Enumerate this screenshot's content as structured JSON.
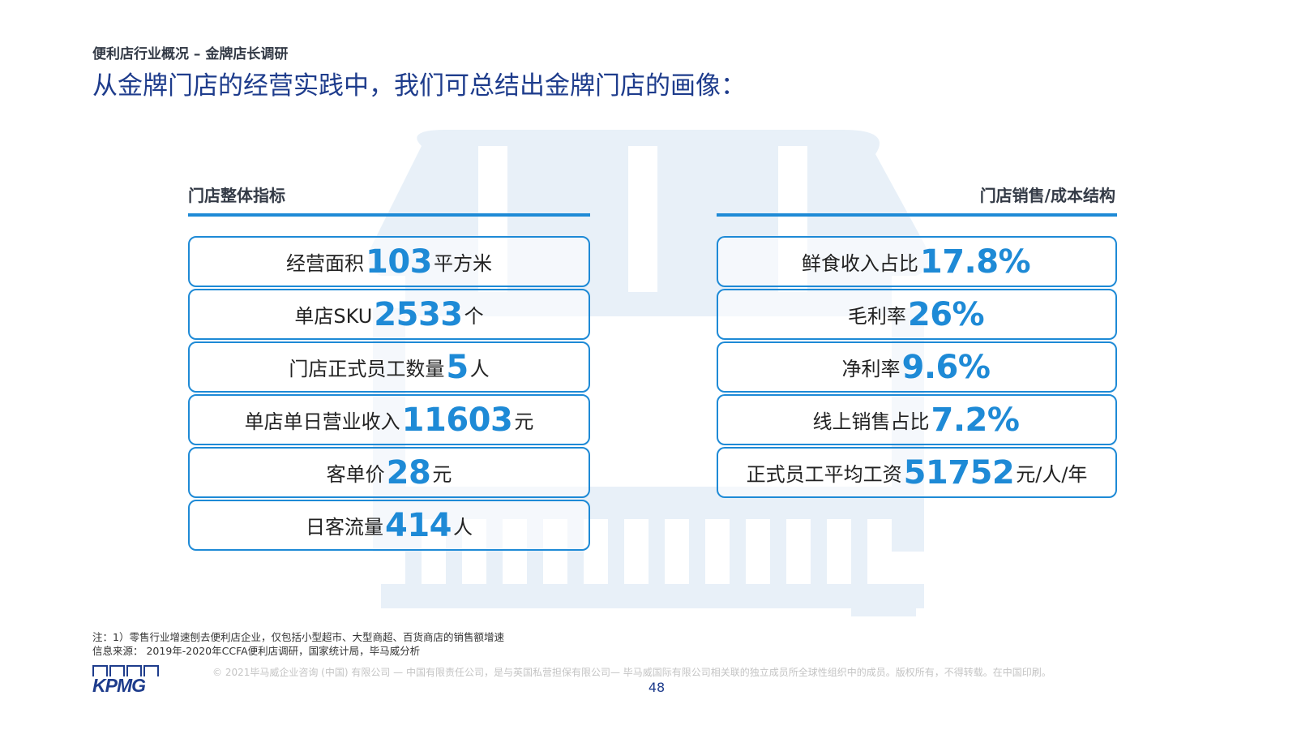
{
  "header": {
    "subtitle": "便利店行业概况 – 金牌店长调研",
    "title": "从金牌门店的经营实践中，我们可总结出金牌门店的画像："
  },
  "left_section": {
    "heading": "门店整体指标",
    "items": [
      {
        "label": "经营面积",
        "value": "103",
        "unit": "平方米"
      },
      {
        "label": "单店SKU",
        "value": "2533",
        "unit": "个"
      },
      {
        "label": "门店正式员工数量",
        "value": "5",
        "unit": "人"
      },
      {
        "label": "单店单日营业收入",
        "value": "11603",
        "unit": "元"
      },
      {
        "label": "客单价",
        "value": "28",
        "unit": "元"
      },
      {
        "label": "日客流量",
        "value": "414",
        "unit": "人"
      }
    ]
  },
  "right_section": {
    "heading": "门店销售/成本结构",
    "items": [
      {
        "label": "鲜食收入占比",
        "value": "17.8%",
        "unit": ""
      },
      {
        "label": "毛利率",
        "value": "26%",
        "unit": ""
      },
      {
        "label": "净利率",
        "value": "9.6%",
        "unit": ""
      },
      {
        "label": "线上销售占比",
        "value": "7.2%",
        "unit": ""
      },
      {
        "label": "正式员工平均工资",
        "value": "51752",
        "unit": "元/人/年"
      }
    ]
  },
  "footer": {
    "note": "注：1）零售行业增速刨去便利店企业，仅包括小型超市、大型商超、百货商店的销售额增速",
    "source": "信息来源： 2019年-2020年CCFA便利店调研，国家统计局，毕马威分析",
    "logo": "KPMG",
    "copyright": "© 2021毕马威企业咨询 (中国) 有限公司 — 中国有限责任公司，是与英国私营担保有限公司— 毕马威国际有限公司相关联的独立成员所全球性组织中的成员。版权所有，不得转载。在中国印刷。",
    "page_number": "48"
  },
  "colors": {
    "accent": "#1e8ad6",
    "title": "#1e3c8c",
    "watermark": "#e8f0f8"
  }
}
